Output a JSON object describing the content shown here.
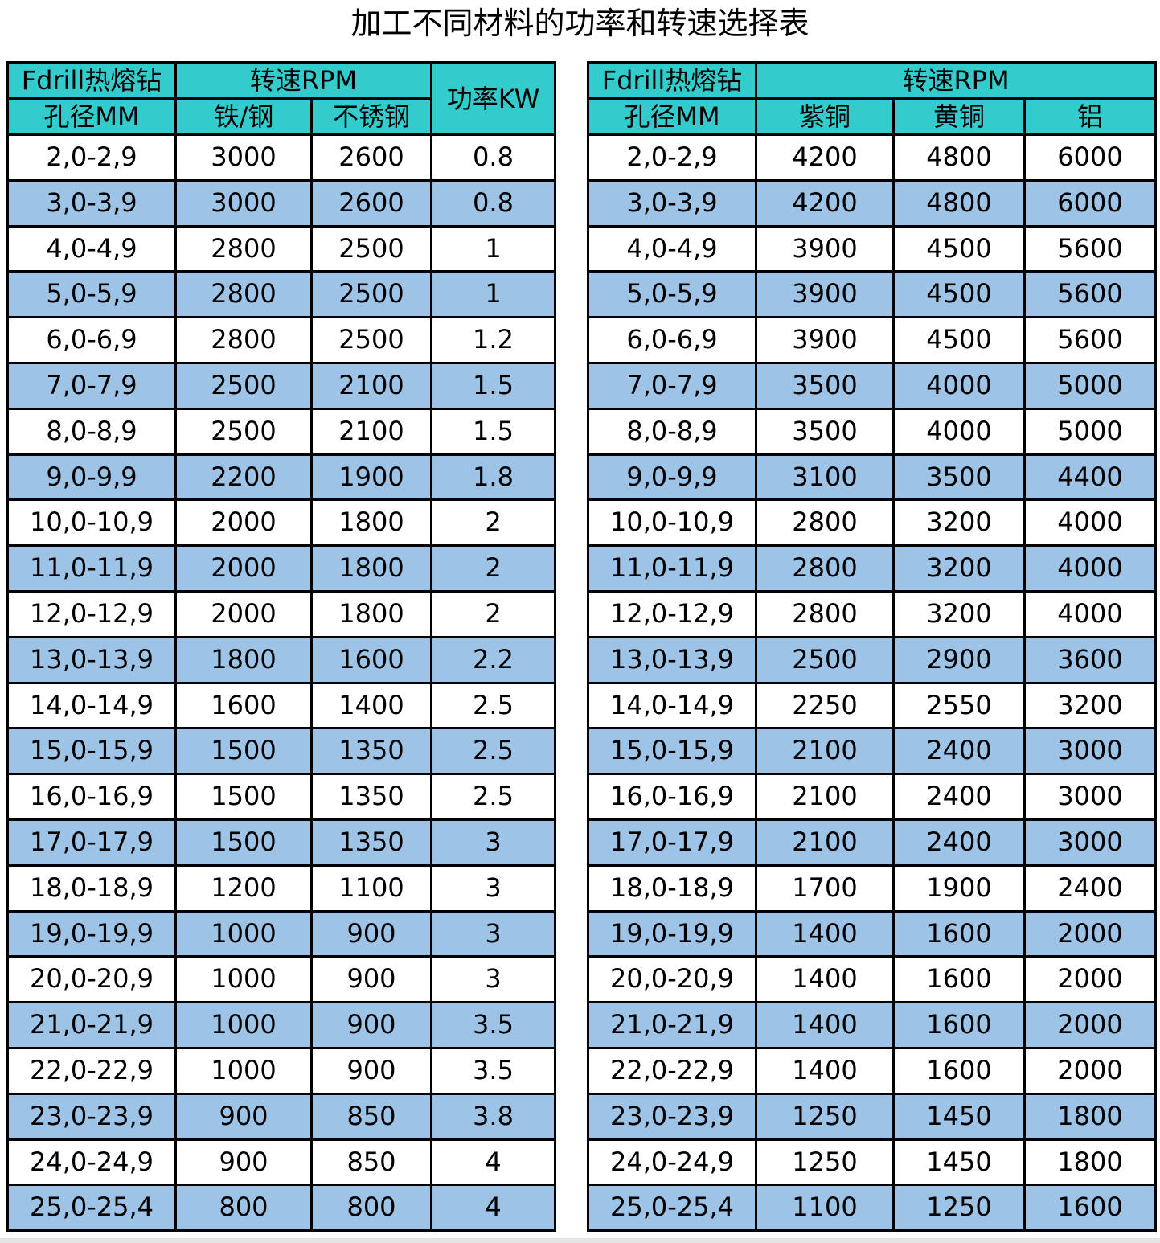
{
  "title": "加工不同材料的功率和转速选择表",
  "colors": {
    "header": "#33CCCC",
    "alt_row": "#9DC3E6",
    "row": "#FFFFFF"
  },
  "left_table": {
    "header": {
      "diameter_1": "Fdrill热熔钻",
      "diameter_2": "孔径MM",
      "rpm": "转速RPM",
      "iron_steel": "铁/钢",
      "stainless": "不锈钢",
      "power": "功率KW"
    },
    "rows": [
      [
        "2,0-2,9",
        "3000",
        "2600",
        "0.8"
      ],
      [
        "3,0-3,9",
        "3000",
        "2600",
        "0.8"
      ],
      [
        "4,0-4,9",
        "2800",
        "2500",
        "1"
      ],
      [
        "5,0-5,9",
        "2800",
        "2500",
        "1"
      ],
      [
        "6,0-6,9",
        "2800",
        "2500",
        "1.2"
      ],
      [
        "7,0-7,9",
        "2500",
        "2100",
        "1.5"
      ],
      [
        "8,0-8,9",
        "2500",
        "2100",
        "1.5"
      ],
      [
        "9,0-9,9",
        "2200",
        "1900",
        "1.8"
      ],
      [
        "10,0-10,9",
        "2000",
        "1800",
        "2"
      ],
      [
        "11,0-11,9",
        "2000",
        "1800",
        "2"
      ],
      [
        "12,0-12,9",
        "2000",
        "1800",
        "2"
      ],
      [
        "13,0-13,9",
        "1800",
        "1600",
        "2.2"
      ],
      [
        "14,0-14,9",
        "1600",
        "1400",
        "2.5"
      ],
      [
        "15,0-15,9",
        "1500",
        "1350",
        "2.5"
      ],
      [
        "16,0-16,9",
        "1500",
        "1350",
        "2.5"
      ],
      [
        "17,0-17,9",
        "1500",
        "1350",
        "3"
      ],
      [
        "18,0-18,9",
        "1200",
        "1100",
        "3"
      ],
      [
        "19,0-19,9",
        "1000",
        "900",
        "3"
      ],
      [
        "20,0-20,9",
        "1000",
        "900",
        "3"
      ],
      [
        "21,0-21,9",
        "1000",
        "900",
        "3.5"
      ],
      [
        "22,0-22,9",
        "1000",
        "900",
        "3.5"
      ],
      [
        "23,0-23,9",
        "900",
        "850",
        "3.8"
      ],
      [
        "24,0-24,9",
        "900",
        "850",
        "4"
      ],
      [
        "25,0-25,4",
        "800",
        "800",
        "4"
      ]
    ]
  },
  "right_table": {
    "header": {
      "diameter_1": "Fdrill热熔钻",
      "diameter_2": "孔径MM",
      "rpm": "转速RPM",
      "copper": "紫铜",
      "brass": "黄铜",
      "aluminum": "铝"
    },
    "rows": [
      [
        "2,0-2,9",
        "4200",
        "4800",
        "6000"
      ],
      [
        "3,0-3,9",
        "4200",
        "4800",
        "6000"
      ],
      [
        "4,0-4,9",
        "3900",
        "4500",
        "5600"
      ],
      [
        "5,0-5,9",
        "3900",
        "4500",
        "5600"
      ],
      [
        "6,0-6,9",
        "3900",
        "4500",
        "5600"
      ],
      [
        "7,0-7,9",
        "3500",
        "4000",
        "5000"
      ],
      [
        "8,0-8,9",
        "3500",
        "4000",
        "5000"
      ],
      [
        "9,0-9,9",
        "3100",
        "3500",
        "4400"
      ],
      [
        "10,0-10,9",
        "2800",
        "3200",
        "4000"
      ],
      [
        "11,0-11,9",
        "2800",
        "3200",
        "4000"
      ],
      [
        "12,0-12,9",
        "2800",
        "3200",
        "4000"
      ],
      [
        "13,0-13,9",
        "2500",
        "2900",
        "3600"
      ],
      [
        "14,0-14,9",
        "2250",
        "2550",
        "3200"
      ],
      [
        "15,0-15,9",
        "2100",
        "2400",
        "3000"
      ],
      [
        "16,0-16,9",
        "2100",
        "2400",
        "3000"
      ],
      [
        "17,0-17,9",
        "2100",
        "2400",
        "3000"
      ],
      [
        "18,0-18,9",
        "1700",
        "1900",
        "2400"
      ],
      [
        "19,0-19,9",
        "1400",
        "1600",
        "2000"
      ],
      [
        "20,0-20,9",
        "1400",
        "1600",
        "2000"
      ],
      [
        "21,0-21,9",
        "1400",
        "1600",
        "2000"
      ],
      [
        "22,0-22,9",
        "1400",
        "1600",
        "2000"
      ],
      [
        "23,0-23,9",
        "1250",
        "1450",
        "1800"
      ],
      [
        "24,0-24,9",
        "1250",
        "1450",
        "1800"
      ],
      [
        "25,0-25,4",
        "1100",
        "1250",
        "1600"
      ]
    ]
  }
}
